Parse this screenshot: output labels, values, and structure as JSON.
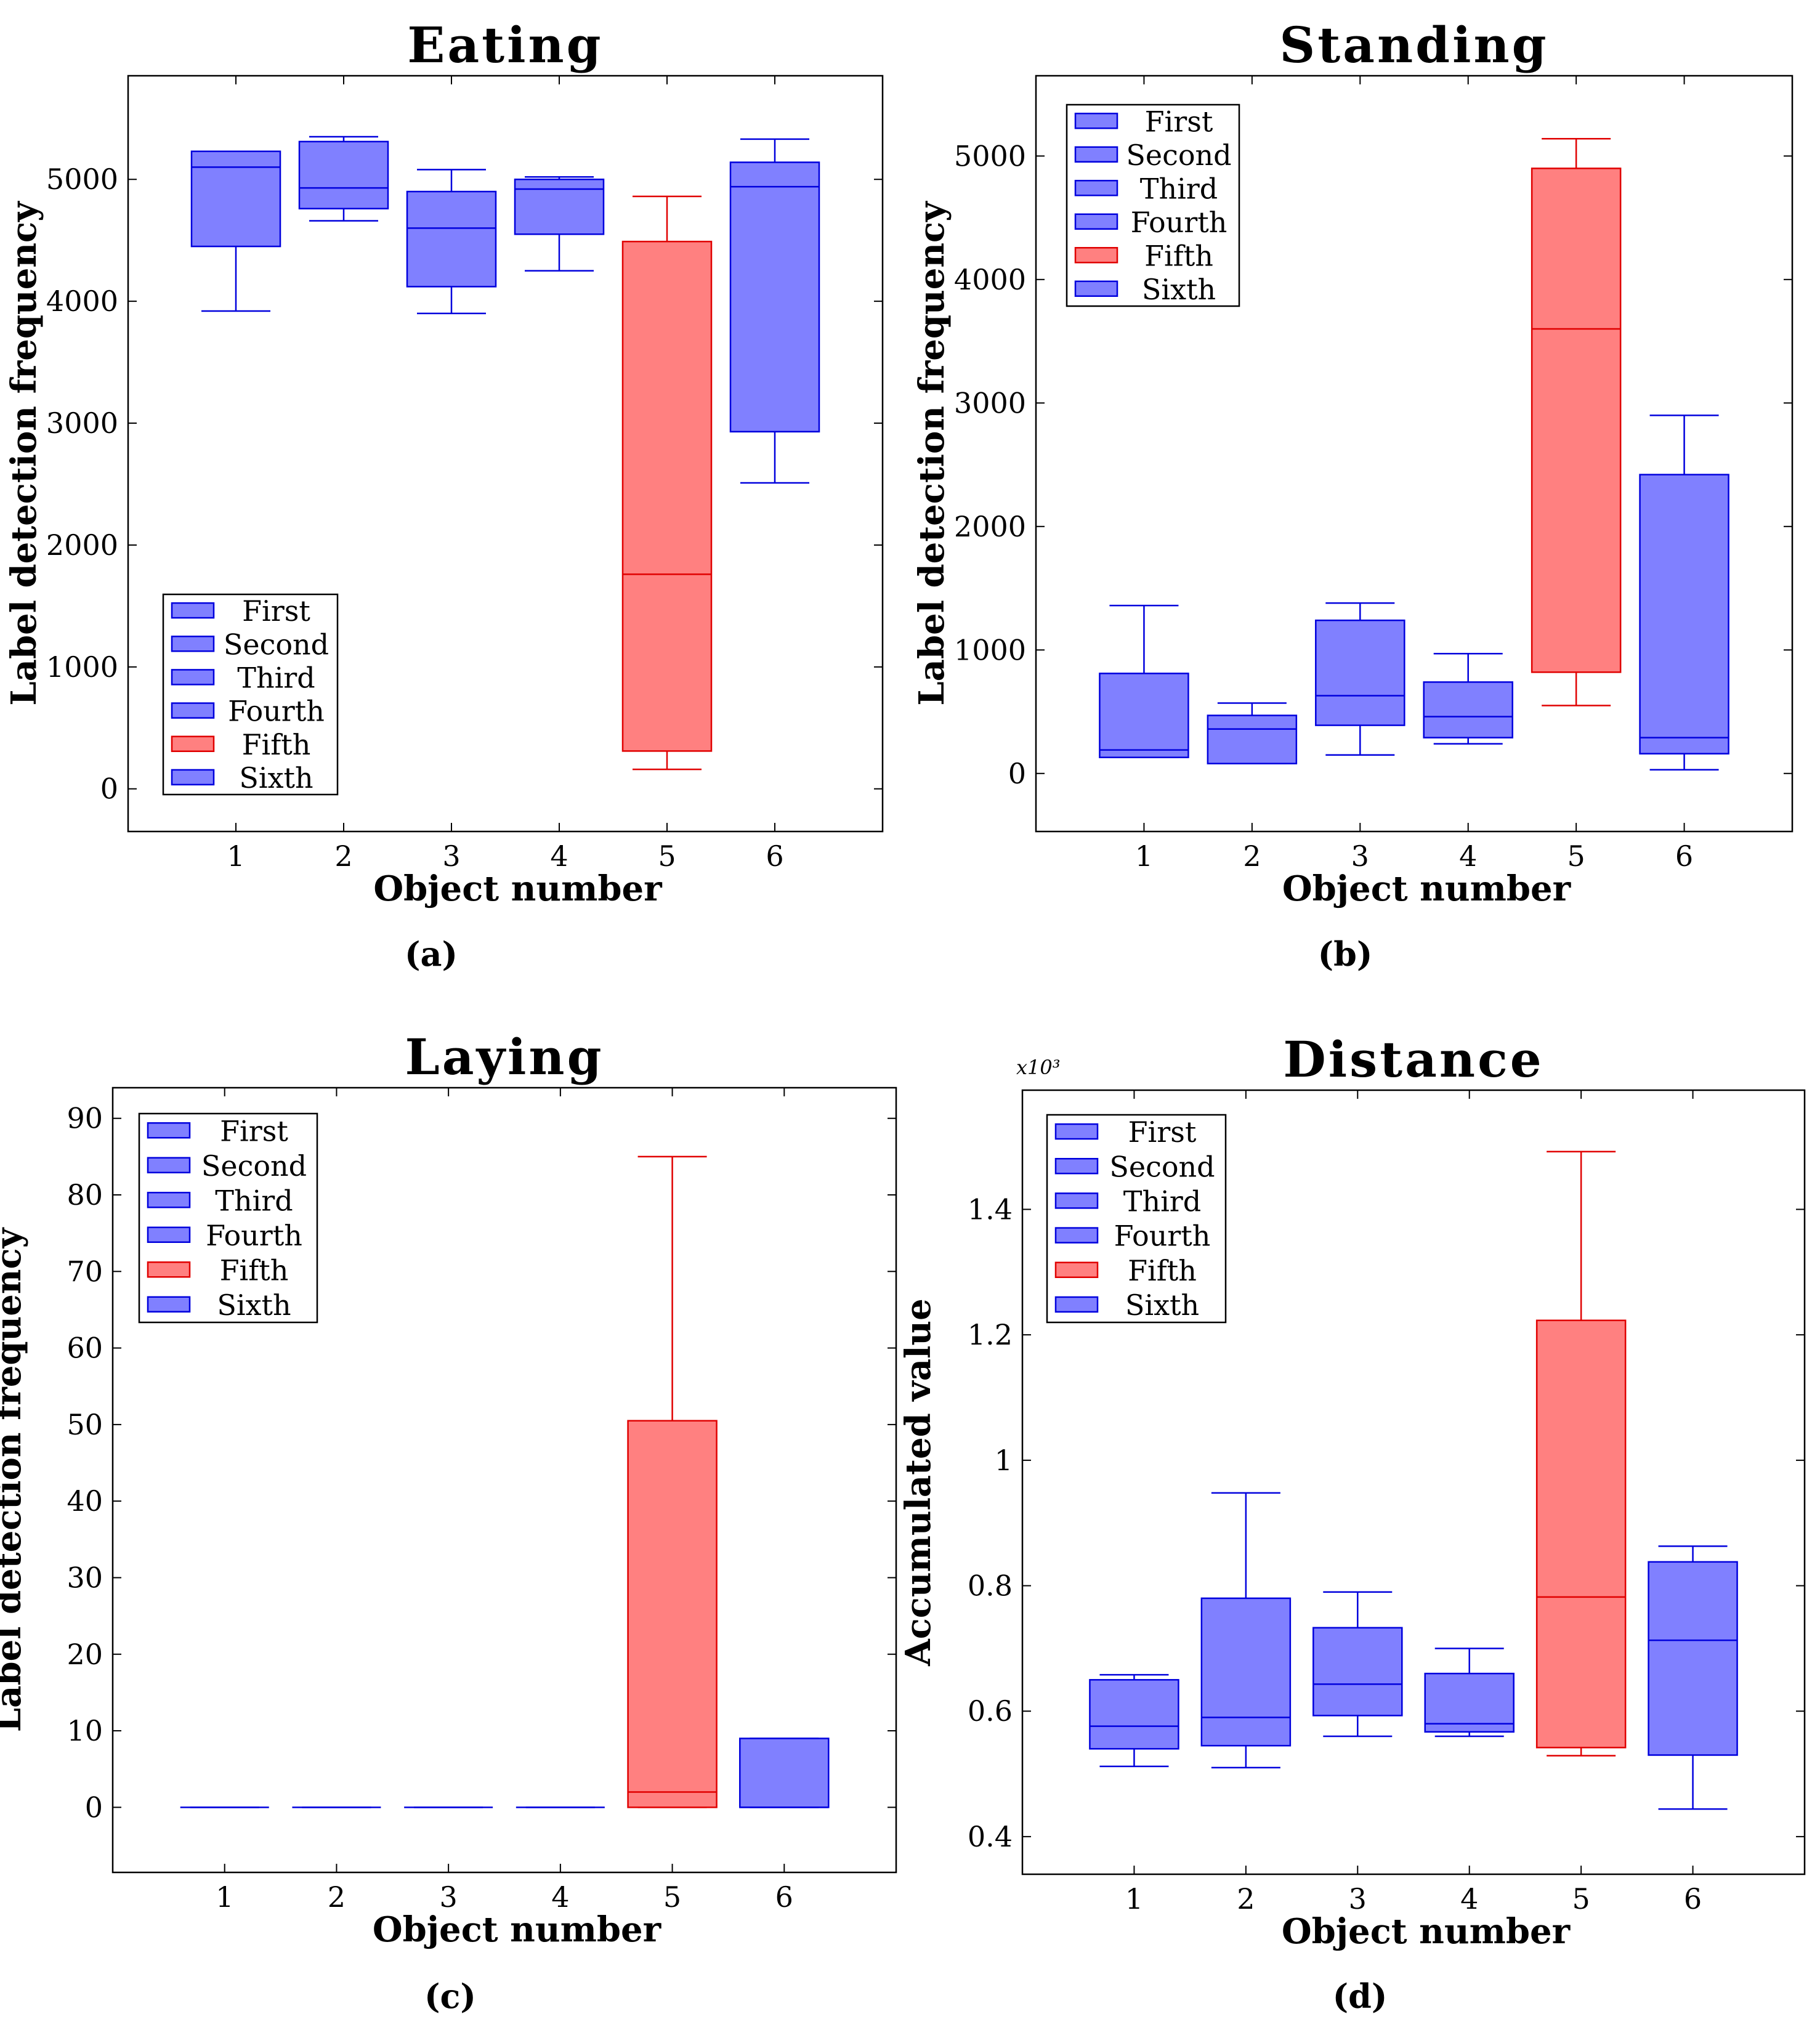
{
  "figure": {
    "captions": [
      "(a)",
      "(b)",
      "(c)",
      "(d)"
    ]
  },
  "colors": {
    "blue_fill": "#8080ff",
    "blue_edge": "#0000dd",
    "red_fill": "#ff8080",
    "red_edge": "#e00000"
  },
  "chart_data": [
    {
      "type": "box",
      "title": "Eating",
      "xlabel": "Object number",
      "ylabel": "Label detection frequency",
      "categories": [
        "1",
        "2",
        "3",
        "4",
        "5",
        "6"
      ],
      "xlim": [
        0,
        7
      ],
      "ylim": [
        -350,
        5850
      ],
      "yticks": [
        0,
        1000,
        2000,
        3000,
        4000,
        5000
      ],
      "ytick_labels": [
        "0",
        "1000",
        "2000",
        "3000",
        "4000",
        "5000"
      ],
      "legend": [
        "First",
        "Second",
        "Third",
        "Fourth",
        "Fifth",
        "Sixth"
      ],
      "legend_position": "bottom-left",
      "boxes": [
        {
          "min": 3920,
          "q1": 4450,
          "median": 5100,
          "q3": 5230,
          "max": 5230
        },
        {
          "min": 4660,
          "q1": 4760,
          "median": 4930,
          "q3": 5310,
          "max": 5350
        },
        {
          "min": 3900,
          "q1": 4120,
          "median": 4600,
          "q3": 4900,
          "max": 5080
        },
        {
          "min": 4250,
          "q1": 4550,
          "median": 4920,
          "q3": 5000,
          "max": 5020
        },
        {
          "min": 160,
          "q1": 310,
          "median": 1760,
          "q3": 4490,
          "max": 4860
        },
        {
          "min": 2510,
          "q1": 2930,
          "median": 4940,
          "q3": 5140,
          "max": 5330
        }
      ]
    },
    {
      "type": "box",
      "title": "Standing",
      "xlabel": "Object number",
      "ylabel": "Label detection frequency",
      "categories": [
        "1",
        "2",
        "3",
        "4",
        "5",
        "6"
      ],
      "xlim": [
        0,
        7
      ],
      "ylim": [
        -470,
        5650
      ],
      "yticks": [
        0,
        1000,
        2000,
        3000,
        4000,
        5000
      ],
      "ytick_labels": [
        "0",
        "1000",
        "2000",
        "3000",
        "4000",
        "5000"
      ],
      "legend": [
        "First",
        "Second",
        "Third",
        "Fourth",
        "Fifth",
        "Sixth"
      ],
      "legend_position": "top-left",
      "boxes": [
        {
          "min": 130,
          "q1": 130,
          "median": 190,
          "q3": 810,
          "max": 1360
        },
        {
          "min": 80,
          "q1": 80,
          "median": 360,
          "q3": 470,
          "max": 570
        },
        {
          "min": 150,
          "q1": 390,
          "median": 630,
          "q3": 1240,
          "max": 1380
        },
        {
          "min": 240,
          "q1": 290,
          "median": 460,
          "q3": 740,
          "max": 970
        },
        {
          "min": 550,
          "q1": 820,
          "median": 3600,
          "q3": 4900,
          "max": 5140
        },
        {
          "min": 30,
          "q1": 160,
          "median": 290,
          "q3": 2420,
          "max": 2900
        }
      ]
    },
    {
      "type": "box",
      "title": "Laying",
      "xlabel": "Object number",
      "ylabel": "Label detection frequency",
      "categories": [
        "1",
        "2",
        "3",
        "4",
        "5",
        "6"
      ],
      "xlim": [
        0,
        7
      ],
      "ylim": [
        -8.5,
        94
      ],
      "yticks": [
        0,
        10,
        20,
        30,
        40,
        50,
        60,
        70,
        80,
        90
      ],
      "ytick_labels": [
        "0",
        "10",
        "20",
        "30",
        "40",
        "50",
        "60",
        "70",
        "80",
        "90"
      ],
      "legend": [
        "First",
        "Second",
        "Third",
        "Fourth",
        "Fifth",
        "Sixth"
      ],
      "legend_position": "top-left",
      "boxes": [
        {
          "min": 0,
          "q1": 0,
          "median": 0,
          "q3": 0,
          "max": 0
        },
        {
          "min": 0,
          "q1": 0,
          "median": 0,
          "q3": 0,
          "max": 0
        },
        {
          "min": 0,
          "q1": 0,
          "median": 0,
          "q3": 0,
          "max": 0
        },
        {
          "min": 0,
          "q1": 0,
          "median": 0,
          "q3": 0,
          "max": 0
        },
        {
          "min": 0,
          "q1": 0,
          "median": 2,
          "q3": 50.5,
          "max": 85
        },
        {
          "min": 0,
          "q1": 0,
          "median": 0,
          "q3": 9,
          "max": 9
        }
      ]
    },
    {
      "type": "box",
      "title": "Distance",
      "xlabel": "Object number",
      "ylabel": "Accumulated value",
      "y_multiplier": "x10³",
      "categories": [
        "1",
        "2",
        "3",
        "4",
        "5",
        "6"
      ],
      "xlim": [
        0,
        7
      ],
      "ylim": [
        0.34,
        1.59
      ],
      "yticks": [
        0.4,
        0.6,
        0.8,
        1.0,
        1.2,
        1.4
      ],
      "ytick_labels": [
        "0.4",
        "0.6",
        "0.8",
        "1",
        "1.2",
        "1.4"
      ],
      "legend": [
        "First",
        "Second",
        "Third",
        "Fourth",
        "Fifth",
        "Sixth"
      ],
      "legend_position": "top-left",
      "boxes": [
        {
          "min": 0.512,
          "q1": 0.54,
          "median": 0.576,
          "q3": 0.65,
          "max": 0.658
        },
        {
          "min": 0.51,
          "q1": 0.545,
          "median": 0.59,
          "q3": 0.78,
          "max": 0.948
        },
        {
          "min": 0.56,
          "q1": 0.593,
          "median": 0.643,
          "q3": 0.733,
          "max": 0.79
        },
        {
          "min": 0.56,
          "q1": 0.567,
          "median": 0.58,
          "q3": 0.66,
          "max": 0.7
        },
        {
          "min": 0.529,
          "q1": 0.542,
          "median": 0.782,
          "q3": 1.223,
          "max": 1.492
        },
        {
          "min": 0.444,
          "q1": 0.53,
          "median": 0.713,
          "q3": 0.838,
          "max": 0.863
        }
      ]
    }
  ]
}
